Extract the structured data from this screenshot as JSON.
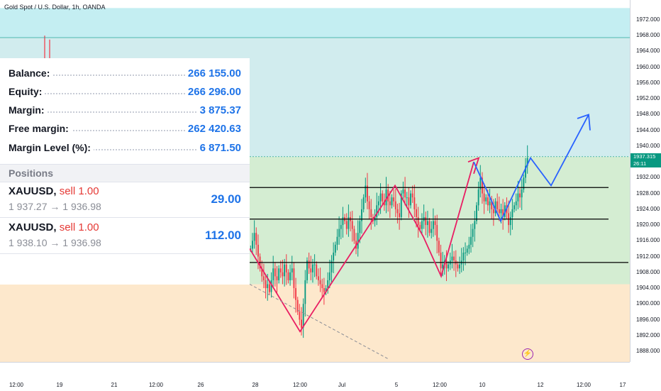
{
  "chart_title": "Gold Spot / U.S. Dollar, 1h, OANDA",
  "colors": {
    "upper_zone": "#c4eef2",
    "middle_zone": "#d4edd2",
    "lower_zone": "#fde8cc",
    "candle_up": "#089981",
    "candle_down": "#f23645",
    "zigzag": "#e91e63",
    "projection": "#2962ff",
    "accent_blue": "#1e73e8"
  },
  "account": {
    "rows": [
      {
        "label": "Balance:",
        "value": "266 155.00"
      },
      {
        "label": "Equity:",
        "value": "266 296.00"
      },
      {
        "label": "Margin:",
        "value": "3 875.37"
      },
      {
        "label": "Free margin:",
        "value": "262 420.63"
      },
      {
        "label": "Margin Level (%):",
        "value": "6 871.50"
      }
    ],
    "positions_title": "Positions",
    "positions": [
      {
        "symbol": "XAUUSD,",
        "side": "sell 1.00",
        "prices": "1 937.27 → 1 936.98",
        "pl": "29.00"
      },
      {
        "symbol": "XAUUSD,",
        "side": "sell 1.00",
        "prices": "1 938.10 → 1 936.98",
        "pl": "112.00"
      }
    ]
  },
  "price_tag": {
    "price": "1937.315",
    "countdown": "26:11"
  },
  "chart_data": {
    "type": "candlestick",
    "title": "Gold Spot / U.S. Dollar, 1h, OANDA",
    "y_range": [
      1885,
      1975
    ],
    "y_ticks": [
      "1972.000",
      "1968.000",
      "1964.000",
      "1960.000",
      "1956.000",
      "1952.000",
      "1948.000",
      "1944.000",
      "1940.000",
      "1936.000",
      "1932.000",
      "1928.000",
      "1924.000",
      "1920.000",
      "1916.000",
      "1912.000",
      "1908.000",
      "1904.000",
      "1900.000",
      "1896.000",
      "1892.000",
      "1888.000"
    ],
    "x_ticks": [
      "12:00",
      "19",
      "21",
      "12:00",
      "26",
      "28",
      "12:00",
      "Jul",
      "5",
      "12:00",
      "10",
      "12",
      "12:00",
      "17"
    ],
    "zones": [
      {
        "name": "upper",
        "from": 1967.5,
        "to": 1975
      },
      {
        "name": "middle",
        "from": 1905,
        "to": 1937.3
      },
      {
        "name": "lower",
        "from": 1885,
        "to": 1905
      }
    ],
    "horizontal_levels": [
      1967.5,
      1929.5,
      1921.5,
      1910.5
    ],
    "current_price": 1937.315,
    "zigzag_points": [
      [
        1914,
        1918
      ],
      [
        1893,
        1911
      ],
      [
        1930,
        1922
      ],
      [
        1917,
        1934
      ],
      [
        1907,
        1921
      ],
      [
        1936,
        1937
      ]
    ],
    "projection_points": [
      [
        1926,
        1937
      ],
      [
        1932,
        1921
      ],
      [
        1948,
        1937
      ]
    ],
    "candles_close": [
      1914,
      1916,
      1918,
      1915,
      1912,
      1909,
      1907,
      1906,
      1904,
      1905,
      1903,
      1906,
      1909,
      1907,
      1906,
      1909,
      1908,
      1907,
      1910,
      1908,
      1906,
      1908,
      1909,
      1904,
      1901,
      1898,
      1896,
      1894,
      1900,
      1906,
      1911,
      1909,
      1908,
      1910,
      1910,
      1907,
      1906,
      1905,
      1904,
      1903,
      1904,
      1906,
      1908,
      1911,
      1913,
      1915,
      1917,
      1919,
      1920,
      1922,
      1921,
      1919,
      1922,
      1921,
      1919,
      1916,
      1914,
      1918,
      1921,
      1924,
      1927,
      1930,
      1926,
      1924,
      1922,
      1921,
      1922,
      1925,
      1926,
      1928,
      1926,
      1925,
      1929,
      1926,
      1925,
      1927,
      1926,
      1924,
      1923,
      1922,
      1928,
      1929,
      1927,
      1927,
      1925,
      1928,
      1927,
      1924,
      1922,
      1920,
      1919,
      1921,
      1922,
      1920,
      1921,
      1918,
      1919,
      1921,
      1920,
      1916,
      1913,
      1909,
      1910,
      1911,
      1909,
      1910,
      1911,
      1912,
      1911,
      1910,
      1909,
      1910,
      1911,
      1913,
      1913,
      1914,
      1915,
      1917,
      1919,
      1921,
      1925,
      1929,
      1932,
      1928,
      1926,
      1927,
      1925,
      1926,
      1924,
      1923,
      1926,
      1924,
      1923,
      1924,
      1922,
      1925,
      1923,
      1920,
      1922,
      1924,
      1925,
      1926,
      1928,
      1927,
      1929,
      1932,
      1935,
      1937
    ]
  }
}
